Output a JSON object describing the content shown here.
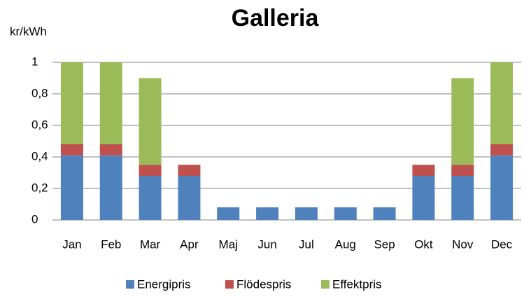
{
  "chart_data": {
    "type": "stacked_bar",
    "title": "Galleria",
    "y_label": "kr/kWh",
    "categories": [
      "Jan",
      "Feb",
      "Mar",
      "Apr",
      "Maj",
      "Jun",
      "Jul",
      "Aug",
      "Sep",
      "Okt",
      "Nov",
      "Dec"
    ],
    "series": [
      {
        "name": "Energipris",
        "color": "#4f81bd",
        "values": [
          0.41,
          0.41,
          0.28,
          0.28,
          0.08,
          0.08,
          0.08,
          0.08,
          0.08,
          0.28,
          0.28,
          0.41
        ]
      },
      {
        "name": "Flödespris",
        "color": "#c0504d",
        "values": [
          0.07,
          0.07,
          0.07,
          0.07,
          0,
          0,
          0,
          0,
          0,
          0.07,
          0.07,
          0.07
        ]
      },
      {
        "name": "Effektpris",
        "color": "#9bbb59",
        "values": [
          0.52,
          0.52,
          0.55,
          0,
          0,
          0,
          0,
          0,
          0,
          0,
          0.55,
          0.52
        ]
      }
    ],
    "ylim": [
      0,
      1
    ],
    "yticks": [
      0,
      {
        "value": 0.2,
        "label": "0,2"
      },
      {
        "value": 0.4,
        "label": "0,4"
      },
      {
        "value": 0.6,
        "label": "0,6"
      },
      {
        "value": 0.8,
        "label": "0,8"
      },
      1
    ],
    "grid": true,
    "legend": "bottom"
  }
}
